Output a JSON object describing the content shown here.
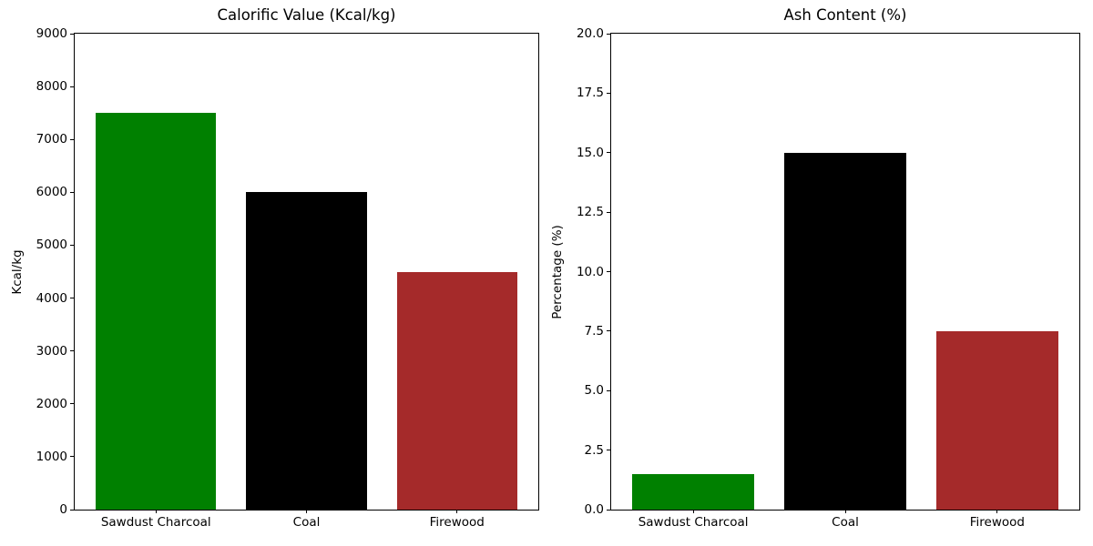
{
  "chart_data": [
    {
      "type": "bar",
      "title": "Calorific Value (Kcal/kg)",
      "xlabel": "",
      "ylabel": "Kcal/kg",
      "categories": [
        "Sawdust Charcoal",
        "Coal",
        "Firewood"
      ],
      "values": [
        7500,
        6000,
        4500
      ],
      "bar_colors": [
        "#008000",
        "#000000",
        "#A52A2A"
      ],
      "ylim": [
        0,
        9000
      ],
      "yticks": {
        "values": [
          0,
          1000,
          2000,
          3000,
          4000,
          5000,
          6000,
          7000,
          8000,
          9000
        ],
        "labels": [
          "0",
          "1000",
          "2000",
          "3000",
          "4000",
          "5000",
          "6000",
          "7000",
          "8000",
          "9000"
        ]
      },
      "grid": false,
      "legend": null
    },
    {
      "type": "bar",
      "title": "Ash Content (%)",
      "xlabel": "",
      "ylabel": "Percentage (%)",
      "categories": [
        "Sawdust Charcoal",
        "Coal",
        "Firewood"
      ],
      "values": [
        1.5,
        15.0,
        7.5
      ],
      "bar_colors": [
        "#008000",
        "#000000",
        "#A52A2A"
      ],
      "ylim": [
        0,
        20
      ],
      "yticks": {
        "values": [
          0,
          2.5,
          5,
          7.5,
          10,
          12.5,
          15,
          17.5,
          20
        ],
        "labels": [
          "0.0",
          "2.5",
          "5.0",
          "7.5",
          "10.0",
          "12.5",
          "15.0",
          "17.5",
          "20.0"
        ]
      },
      "grid": false,
      "legend": null
    }
  ],
  "figure": {
    "background_color": "#ffffff",
    "text_color": "#000000"
  }
}
